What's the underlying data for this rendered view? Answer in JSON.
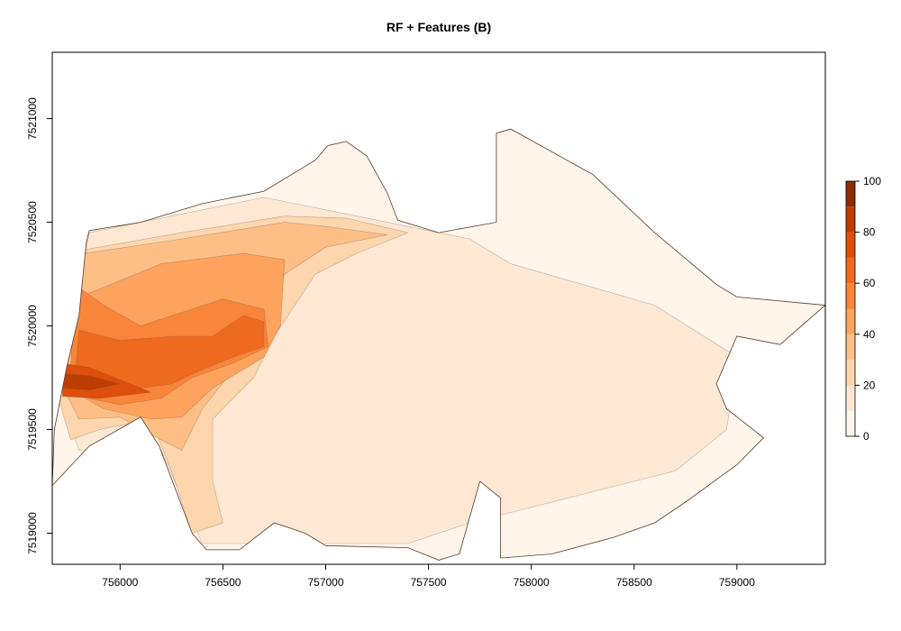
{
  "chart_data": {
    "type": "heatmap",
    "title": "RF + Features (B)",
    "x_ticks": [
      756000,
      756500,
      757000,
      757500,
      758000,
      758500,
      759000
    ],
    "y_ticks": [
      7519000,
      7519500,
      7520000,
      7520500,
      7521000
    ],
    "x_tick_labels": [
      "756000",
      "756500",
      "757000",
      "757500",
      "758000",
      "758500",
      "759000"
    ],
    "y_tick_labels": [
      "7519000",
      "7519500",
      "7520000",
      "7520500",
      "7521000"
    ],
    "xlim": [
      755670,
      759430
    ],
    "ylim": [
      7518850,
      7521320
    ],
    "legend": {
      "position": "right",
      "range": [
        0,
        100
      ],
      "ticks": [
        0,
        20,
        40,
        60,
        80,
        100
      ],
      "tick_labels": [
        "0",
        "20",
        "40",
        "60",
        "80",
        "100"
      ],
      "levels": [
        {
          "from": 0,
          "to": 10,
          "color": "#fff5eb"
        },
        {
          "from": 10,
          "to": 20,
          "color": "#fee8d3"
        },
        {
          "from": 20,
          "to": 30,
          "color": "#fdd6ae"
        },
        {
          "from": 30,
          "to": 40,
          "color": "#fdbf86"
        },
        {
          "from": 40,
          "to": 50,
          "color": "#fda35d"
        },
        {
          "from": 50,
          "to": 60,
          "color": "#f9853a"
        },
        {
          "from": 60,
          "to": 70,
          "color": "#ee6a1e"
        },
        {
          "from": 70,
          "to": 80,
          "color": "#dd4f0a"
        },
        {
          "from": 80,
          "to": 90,
          "color": "#bd3d03"
        },
        {
          "from": 90,
          "to": 100,
          "color": "#8c2d04"
        }
      ]
    },
    "boundary": [
      [
        755670,
        7519230
      ],
      [
        755850,
        7519420
      ],
      [
        756100,
        7519560
      ],
      [
        756190,
        7519420
      ],
      [
        756350,
        7519000
      ],
      [
        756420,
        7518920
      ],
      [
        756580,
        7518920
      ],
      [
        756750,
        7519050
      ],
      [
        756900,
        7519000
      ],
      [
        757000,
        7518940
      ],
      [
        757400,
        7518930
      ],
      [
        757550,
        7518870
      ],
      [
        757650,
        7518900
      ],
      [
        757750,
        7519250
      ],
      [
        757850,
        7519170
      ],
      [
        757850,
        7518880
      ],
      [
        758100,
        7518900
      ],
      [
        758400,
        7518980
      ],
      [
        758600,
        7519050
      ],
      [
        758750,
        7519150
      ],
      [
        759000,
        7519330
      ],
      [
        759130,
        7519460
      ],
      [
        758950,
        7519600
      ],
      [
        758900,
        7519720
      ],
      [
        759000,
        7519950
      ],
      [
        759210,
        7519910
      ],
      [
        759430,
        7520100
      ],
      [
        759000,
        7520140
      ],
      [
        758900,
        7520200
      ],
      [
        758600,
        7520450
      ],
      [
        758300,
        7520730
      ],
      [
        757900,
        7520950
      ],
      [
        757830,
        7520930
      ],
      [
        757830,
        7520500
      ],
      [
        757550,
        7520450
      ],
      [
        757350,
        7520510
      ],
      [
        757300,
        7520640
      ],
      [
        757200,
        7520820
      ],
      [
        757100,
        7520890
      ],
      [
        757010,
        7520870
      ],
      [
        756950,
        7520800
      ],
      [
        756700,
        7520650
      ],
      [
        756400,
        7520590
      ],
      [
        756100,
        7520500
      ],
      [
        755850,
        7520460
      ],
      [
        755835,
        7520400
      ],
      [
        755800,
        7520050
      ],
      [
        755740,
        7519800
      ],
      [
        755680,
        7519500
      ]
    ],
    "zones": [
      {
        "level": 10,
        "points": [
          [
            755850,
            7520450
          ],
          [
            756700,
            7520620
          ],
          [
            757300,
            7520500
          ],
          [
            757700,
            7520420
          ],
          [
            757900,
            7520300
          ],
          [
            758600,
            7520100
          ],
          [
            759000,
            7519850
          ],
          [
            758950,
            7519500
          ],
          [
            758700,
            7519300
          ],
          [
            758300,
            7519200
          ],
          [
            757900,
            7519100
          ],
          [
            757700,
            7519050
          ],
          [
            757400,
            7518950
          ],
          [
            756700,
            7518950
          ],
          [
            756400,
            7518950
          ],
          [
            756200,
            7519400
          ],
          [
            755800,
            7519400
          ],
          [
            755700,
            7519700
          ]
        ]
      },
      {
        "level": 20,
        "points": [
          [
            755840,
            7520370
          ],
          [
            756300,
            7520450
          ],
          [
            756800,
            7520530
          ],
          [
            757100,
            7520520
          ],
          [
            757400,
            7520450
          ],
          [
            757150,
            7520350
          ],
          [
            756950,
            7520250
          ],
          [
            756750,
            7519950
          ],
          [
            756650,
            7519750
          ],
          [
            756450,
            7519550
          ],
          [
            756450,
            7519250
          ],
          [
            756500,
            7519050
          ],
          [
            756350,
            7519000
          ],
          [
            756250,
            7519300
          ],
          [
            756150,
            7519550
          ],
          [
            755900,
            7519500
          ],
          [
            755760,
            7519450
          ],
          [
            755700,
            7519650
          ],
          [
            755760,
            7520000
          ]
        ]
      },
      {
        "level": 30,
        "points": [
          [
            755830,
            7520350
          ],
          [
            756300,
            7520420
          ],
          [
            756800,
            7520500
          ],
          [
            757000,
            7520480
          ],
          [
            757300,
            7520440
          ],
          [
            757000,
            7520380
          ],
          [
            756800,
            7520250
          ],
          [
            756700,
            7520050
          ],
          [
            756600,
            7519850
          ],
          [
            756400,
            7519600
          ],
          [
            756300,
            7519400
          ],
          [
            756180,
            7519460
          ],
          [
            756000,
            7519560
          ],
          [
            755800,
            7519550
          ],
          [
            755700,
            7519750
          ],
          [
            755780,
            7520100
          ]
        ]
      },
      {
        "level": 40,
        "points": [
          [
            755830,
            7520150
          ],
          [
            756200,
            7520300
          ],
          [
            756600,
            7520350
          ],
          [
            756800,
            7520320
          ],
          [
            756780,
            7520000
          ],
          [
            756700,
            7519850
          ],
          [
            756450,
            7519700
          ],
          [
            756300,
            7519560
          ],
          [
            756150,
            7519550
          ],
          [
            755920,
            7519600
          ],
          [
            755780,
            7519680
          ],
          [
            755760,
            7519950
          ]
        ]
      },
      {
        "level": 50,
        "points": [
          [
            755780,
            7520200
          ],
          [
            755920,
            7520100
          ],
          [
            756100,
            7520000
          ],
          [
            756500,
            7520130
          ],
          [
            756700,
            7520080
          ],
          [
            756720,
            7519900
          ],
          [
            756550,
            7519820
          ],
          [
            756350,
            7519750
          ],
          [
            756200,
            7519650
          ],
          [
            756000,
            7519620
          ],
          [
            755850,
            7519650
          ],
          [
            755760,
            7519800
          ]
        ]
      },
      {
        "level": 60,
        "points": [
          [
            755800,
            7519980
          ],
          [
            756000,
            7519930
          ],
          [
            756250,
            7519950
          ],
          [
            756450,
            7519950
          ],
          [
            756600,
            7520050
          ],
          [
            756700,
            7520020
          ],
          [
            756700,
            7519900
          ],
          [
            756550,
            7519850
          ],
          [
            756380,
            7519780
          ],
          [
            756250,
            7519720
          ],
          [
            756100,
            7519700
          ],
          [
            755900,
            7519680
          ],
          [
            755780,
            7519740
          ]
        ]
      },
      {
        "level": 70,
        "points": [
          [
            755720,
            7519820
          ],
          [
            755850,
            7519800
          ],
          [
            756050,
            7519720
          ],
          [
            756150,
            7519680
          ],
          [
            755900,
            7519650
          ],
          [
            755720,
            7519660
          ]
        ]
      },
      {
        "level": 80,
        "points": [
          [
            755720,
            7519770
          ],
          [
            755850,
            7519760
          ],
          [
            756000,
            7519720
          ],
          [
            755850,
            7519690
          ],
          [
            755720,
            7519700
          ]
        ]
      }
    ]
  }
}
